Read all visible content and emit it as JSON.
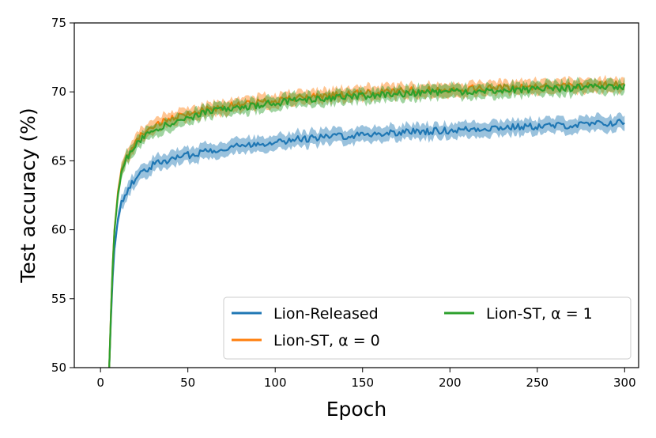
{
  "chart_data": {
    "type": "line",
    "xlabel": "Epoch",
    "ylabel": "Test accuracy (%)",
    "xlim": [
      -15,
      308
    ],
    "ylim": [
      50,
      75
    ],
    "xticks": [
      0,
      50,
      100,
      150,
      200,
      250,
      300
    ],
    "yticks": [
      50,
      55,
      60,
      65,
      70,
      75
    ],
    "grid": false,
    "legend_position": "lower-right",
    "series": [
      {
        "name": "Lion-Released",
        "color": "#1f77b4",
        "x": [
          5,
          6,
          7,
          8,
          10,
          12,
          15,
          20,
          25,
          30,
          40,
          50,
          60,
          75,
          100,
          125,
          150,
          175,
          200,
          225,
          250,
          275,
          300
        ],
        "y": [
          50,
          53.5,
          56.5,
          58.6,
          60.8,
          61.9,
          62.8,
          63.7,
          64.3,
          64.7,
          65.1,
          65.4,
          65.7,
          66.0,
          66.4,
          66.7,
          66.9,
          67.1,
          67.2,
          67.4,
          67.5,
          67.6,
          67.8
        ],
        "band": 0.45
      },
      {
        "name": "Lion-ST, α = 0",
        "color": "#ff7f0e",
        "x": [
          5,
          6,
          7,
          8,
          10,
          12,
          15,
          20,
          25,
          30,
          40,
          50,
          60,
          75,
          100,
          125,
          150,
          175,
          200,
          225,
          250,
          275,
          300
        ],
        "y": [
          50,
          54,
          57.5,
          60,
          62.8,
          64.2,
          65.4,
          66.4,
          67.1,
          67.5,
          68.0,
          68.4,
          68.7,
          69.0,
          69.4,
          69.7,
          69.9,
          70.1,
          70.2,
          70.3,
          70.4,
          70.5,
          70.6
        ],
        "band": 0.4
      },
      {
        "name": "Lion-ST, α = 1",
        "color": "#2ca02c",
        "x": [
          5,
          6,
          7,
          8,
          10,
          12,
          15,
          20,
          25,
          30,
          40,
          50,
          60,
          75,
          100,
          125,
          150,
          175,
          200,
          225,
          250,
          275,
          300
        ],
        "y": [
          50,
          54,
          57.4,
          59.9,
          62.6,
          64.0,
          65.2,
          66.2,
          66.8,
          67.2,
          67.7,
          68.1,
          68.5,
          68.8,
          69.2,
          69.5,
          69.7,
          69.9,
          70.0,
          70.1,
          70.2,
          70.3,
          70.4
        ],
        "band": 0.4
      }
    ]
  }
}
